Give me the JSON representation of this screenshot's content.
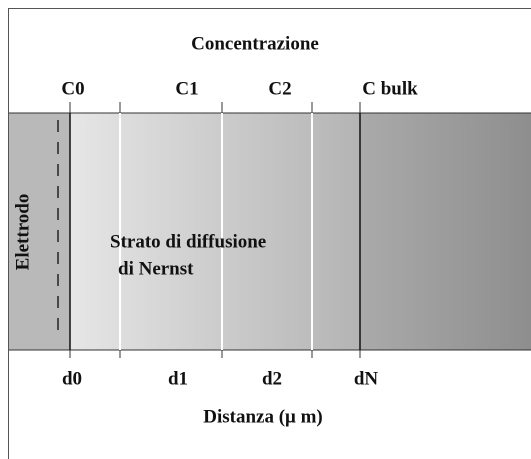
{
  "header": {
    "title": "Concentrazione"
  },
  "concentration_labels": [
    "C0",
    "C1",
    "C2",
    "C bulk"
  ],
  "electrode_label": "Elettrodo",
  "layer_label": [
    "Strato di diffusione",
    "di Nernst"
  ],
  "distance_labels": [
    "d0",
    "d1",
    "d2",
    "dN"
  ],
  "axis_label": "Distanza (μ m)"
}
